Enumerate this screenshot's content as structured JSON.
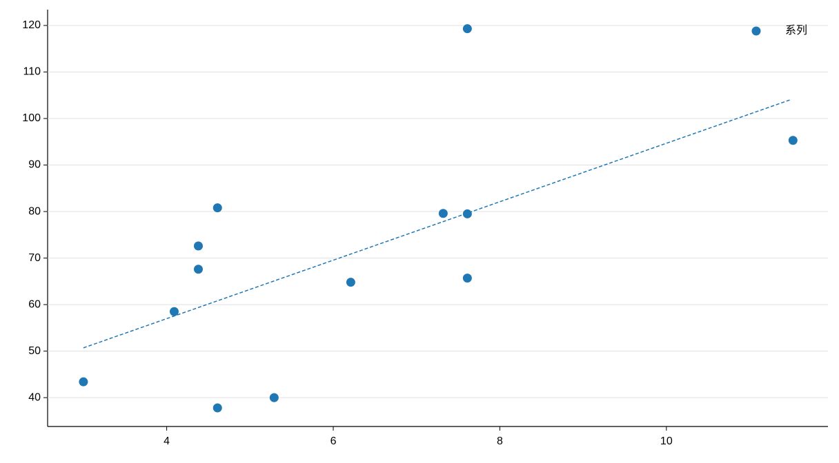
{
  "chart_data": {
    "type": "scatter",
    "series": [
      {
        "name": "系列",
        "color": "#1f77b4",
        "x": [
          3.0,
          4.09,
          4.38,
          4.38,
          4.61,
          4.61,
          5.29,
          6.21,
          7.32,
          7.61,
          7.61,
          7.61,
          11.52
        ],
        "y": [
          43.4,
          58.5,
          67.6,
          72.6,
          80.8,
          37.8,
          40.0,
          64.8,
          79.6,
          79.5,
          65.7,
          119.3,
          95.3
        ]
      }
    ],
    "trendline": {
      "x": [
        3.0,
        11.5
      ],
      "y": [
        50.7,
        104.1
      ],
      "color": "#1f77b4"
    },
    "xlim": [
      2.57,
      11.94
    ],
    "ylim": [
      33.8,
      123.4
    ],
    "xticks": [
      4,
      6,
      8,
      10
    ],
    "yticks": [
      40,
      50,
      60,
      70,
      80,
      90,
      100,
      110,
      120
    ],
    "grid": "y",
    "legend": "upper right"
  }
}
